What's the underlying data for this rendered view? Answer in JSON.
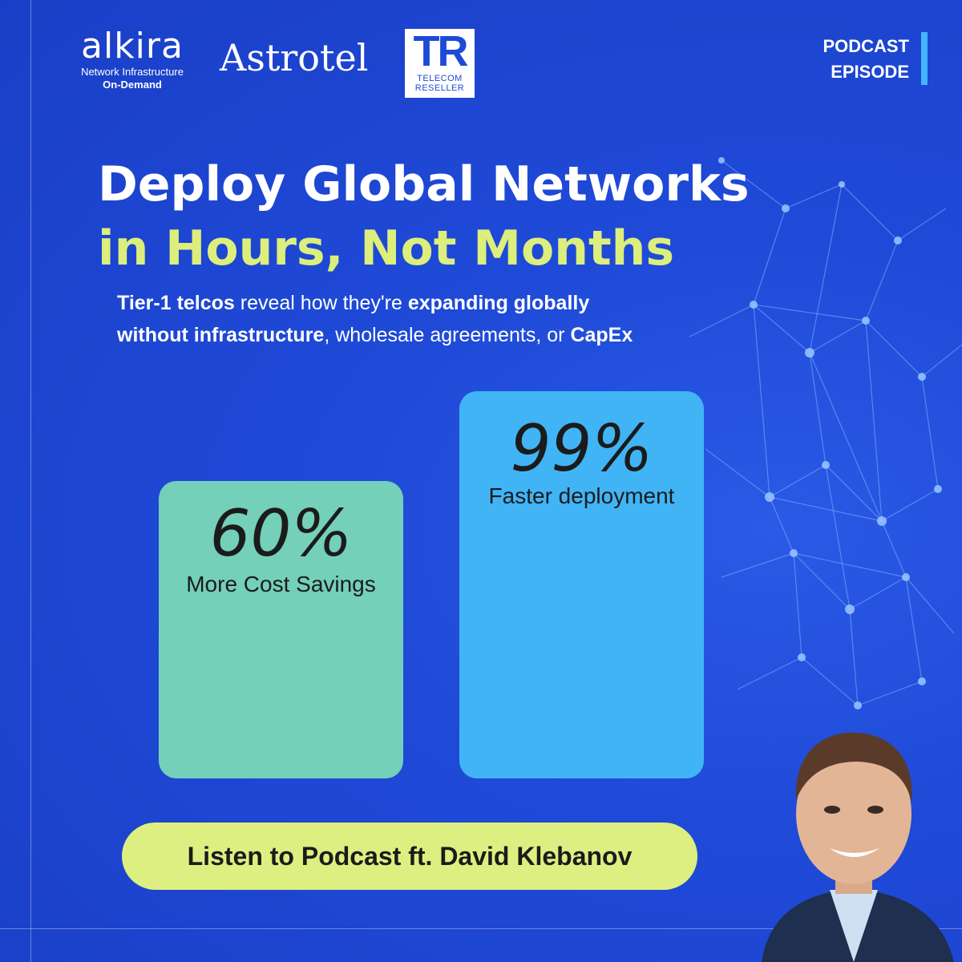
{
  "logos": {
    "alkira": {
      "name": "alkira",
      "tagline_1": "Network Infrastructure",
      "tagline_2": "On-Demand"
    },
    "astrotel": {
      "name": "Astrotel"
    },
    "telecom_reseller": {
      "mark": "TR",
      "line_1": "TELECOM",
      "line_2": "RESELLER"
    }
  },
  "tag": {
    "line_1": "PODCAST",
    "line_2": "EPISODE"
  },
  "headline": {
    "line_1": "Deploy Global Networks",
    "line_2": "in Hours, Not Months"
  },
  "subhead": {
    "p1": "Tier-1 telcos",
    "p2": " reveal how they're ",
    "p3": "expanding globally",
    "p4": "without infrastructure",
    "p5": ", wholesale agreements, or ",
    "p6": "CapEx"
  },
  "stats": [
    {
      "value": "60%",
      "label": "More Cost Savings"
    },
    {
      "value": "99%",
      "label": "Faster deployment"
    }
  ],
  "cta": {
    "label": "Listen to Podcast ft. David Klebanov"
  },
  "colors": {
    "background": "#1f4ad8",
    "headline_accent": "#dcee7c",
    "card_green": "#74d0b8",
    "card_blue": "#41b4f5",
    "cta_bg": "#ddef80",
    "podcast_bar": "#43b5ff"
  }
}
